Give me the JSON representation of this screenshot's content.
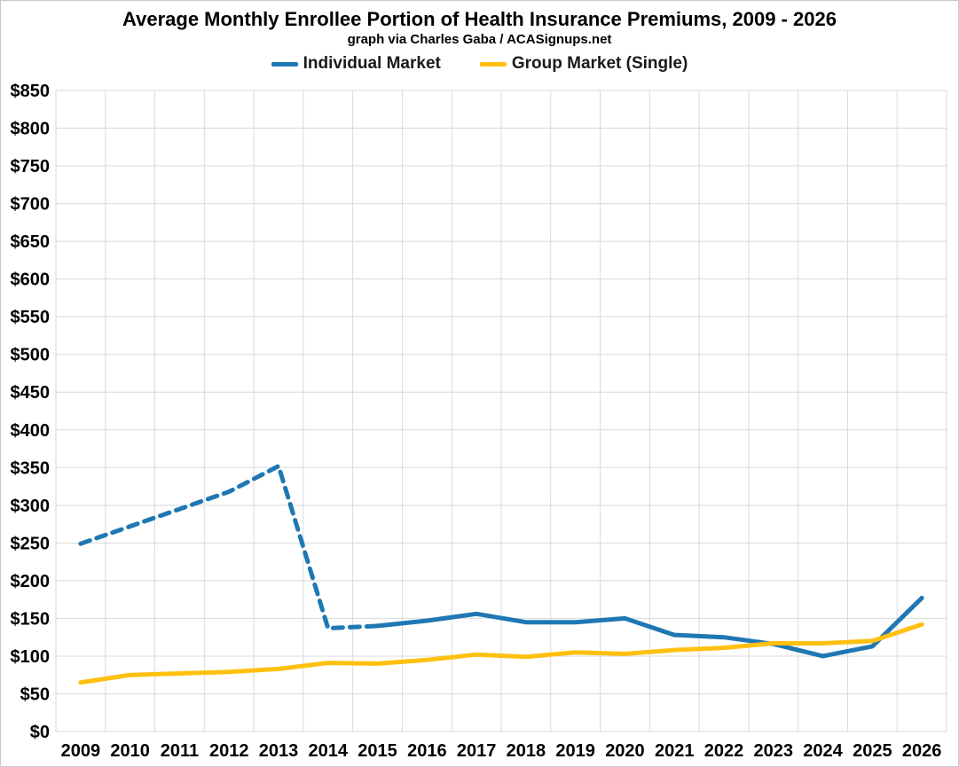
{
  "chart_data": {
    "type": "line",
    "title": "Average Monthly Enrollee Portion of Health Insurance Premiums, 2009 - 2026",
    "subtitle": "graph via Charles Gaba / ACASignups.net",
    "categories": [
      "2009",
      "2010",
      "2011",
      "2012",
      "2013",
      "2014",
      "2015",
      "2016",
      "2017",
      "2018",
      "2019",
      "2020",
      "2021",
      "2022",
      "2023",
      "2024",
      "2025",
      "2026"
    ],
    "series": [
      {
        "id": "individual-market",
        "name": "Individual Market",
        "color": "#1F77B4",
        "line_width": 5,
        "dashed_through_index": 6,
        "line_style_note": "dashed from 2009 through 2015, solid 2015-2026",
        "values": [
          249,
          272,
          295,
          318,
          352,
          137,
          140,
          147,
          156,
          145,
          145,
          150,
          128,
          125,
          116,
          100,
          113,
          177
        ]
      },
      {
        "id": "group-market-single",
        "name": "Group Market (Single)",
        "color": "#FFC010",
        "line_width": 5,
        "dashed_through_index": null,
        "line_style_note": "solid throughout",
        "values": [
          65,
          75,
          77,
          79,
          83,
          91,
          90,
          95,
          102,
          99,
          105,
          103,
          108,
          111,
          117,
          117,
          120,
          142
        ]
      }
    ],
    "xlabel": "",
    "ylabel": "",
    "ylim": [
      0,
      850
    ],
    "ytick_step": 50,
    "ytick_prefix": "$",
    "grid": true,
    "gridline_color": "#d9d9d9",
    "legend_position": "top"
  }
}
